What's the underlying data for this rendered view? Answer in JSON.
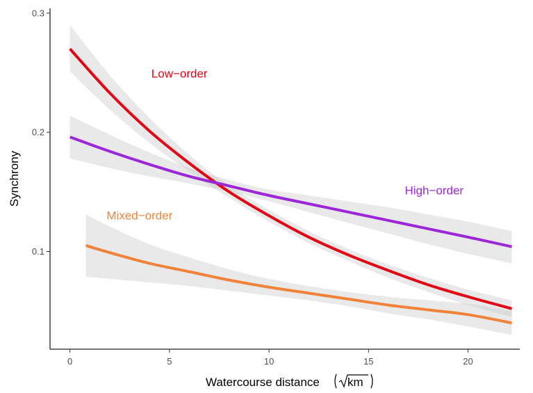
{
  "chart_data": {
    "type": "line",
    "title": "",
    "xlabel": "Watercourse distance",
    "xlabel_unit": "km",
    "ylabel": "Synchrony",
    "xlim": [
      -1.0,
      22.6
    ],
    "ylim": [
      0.018,
      0.304
    ],
    "xticks": [
      0,
      5,
      10,
      15,
      20
    ],
    "yticks": [
      0.1,
      0.2,
      0.3
    ],
    "xtick_labels": [
      "0",
      "5",
      "10",
      "15",
      "20"
    ],
    "ytick_labels": [
      "0.1",
      "0.2",
      "0.3"
    ],
    "grid": false,
    "legend": "none",
    "series": [
      {
        "name": "Low−order",
        "color": "#e30613",
        "x": [
          0,
          2,
          4,
          6,
          8,
          10,
          12,
          14,
          16,
          18,
          20,
          22.2
        ],
        "y": [
          0.27,
          0.233,
          0.201,
          0.174,
          0.15,
          0.13,
          0.112,
          0.097,
          0.084,
          0.072,
          0.062,
          0.052
        ],
        "ci_lower": [
          0.251,
          0.219,
          0.191,
          0.167,
          0.145,
          0.125,
          0.107,
          0.092,
          0.078,
          0.066,
          0.055,
          0.045
        ],
        "ci_upper": [
          0.29,
          0.248,
          0.212,
          0.181,
          0.155,
          0.135,
          0.117,
          0.102,
          0.089,
          0.078,
          0.068,
          0.059
        ]
      },
      {
        "name": "High−order",
        "color": "#9b27d8",
        "x": [
          0,
          2,
          4,
          6,
          8,
          10,
          12,
          14,
          16,
          18,
          20,
          22.2
        ],
        "y": [
          0.196,
          0.184,
          0.173,
          0.163,
          0.155,
          0.147,
          0.14,
          0.133,
          0.126,
          0.119,
          0.112,
          0.104
        ],
        "ci_lower": [
          0.178,
          0.17,
          0.163,
          0.157,
          0.15,
          0.142,
          0.133,
          0.124,
          0.115,
          0.106,
          0.098,
          0.09
        ],
        "ci_upper": [
          0.214,
          0.198,
          0.183,
          0.17,
          0.16,
          0.152,
          0.147,
          0.142,
          0.137,
          0.131,
          0.125,
          0.117
        ]
      },
      {
        "name": "Mixed−order",
        "color": "#f08339",
        "x": [
          0.8,
          2,
          4,
          6,
          8,
          10,
          12,
          14,
          16,
          18,
          20,
          22.2
        ],
        "y": [
          0.105,
          0.099,
          0.09,
          0.083,
          0.076,
          0.07,
          0.065,
          0.06,
          0.055,
          0.051,
          0.047,
          0.04
        ],
        "ci_lower": [
          0.079,
          0.077,
          0.074,
          0.071,
          0.067,
          0.063,
          0.059,
          0.054,
          0.048,
          0.043,
          0.037,
          0.03
        ],
        "ci_upper": [
          0.131,
          0.121,
          0.106,
          0.095,
          0.085,
          0.077,
          0.071,
          0.066,
          0.062,
          0.059,
          0.056,
          0.05
        ]
      }
    ],
    "annotations": [
      {
        "text": "Low−order",
        "series": 0,
        "x": 5.5,
        "y": 0.246
      },
      {
        "text": "High−order",
        "series": 1,
        "x": 18.3,
        "y": 0.148
      },
      {
        "text": "Mixed−order",
        "series": 2,
        "x": 3.5,
        "y": 0.127
      }
    ]
  }
}
